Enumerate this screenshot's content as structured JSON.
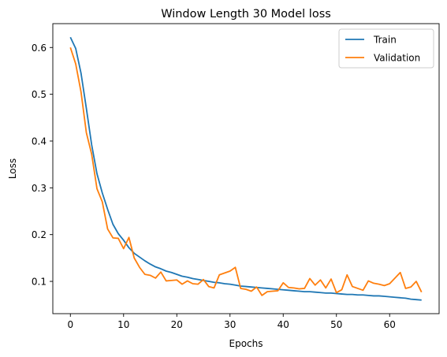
{
  "chart_data": {
    "type": "line",
    "title": "Window Length 30 Model loss",
    "xlabel": "Epochs",
    "ylabel": "Loss",
    "xlim": [
      -3.3,
      69.3
    ],
    "ylim": [
      0.031,
      0.651
    ],
    "xticks": [
      0,
      10,
      20,
      30,
      40,
      50,
      60
    ],
    "yticks": [
      0.1,
      0.2,
      0.3,
      0.4,
      0.5,
      0.6
    ],
    "grid": false,
    "legend_position": "top-right",
    "series": [
      {
        "name": "Train",
        "color": "#1f77b4",
        "values": [
          0.622,
          0.598,
          0.545,
          0.47,
          0.392,
          0.33,
          0.289,
          0.254,
          0.222,
          0.202,
          0.188,
          0.172,
          0.16,
          0.152,
          0.144,
          0.137,
          0.131,
          0.127,
          0.122,
          0.119,
          0.115,
          0.111,
          0.109,
          0.106,
          0.104,
          0.102,
          0.1,
          0.098,
          0.097,
          0.095,
          0.094,
          0.092,
          0.09,
          0.089,
          0.088,
          0.087,
          0.086,
          0.085,
          0.084,
          0.083,
          0.082,
          0.081,
          0.08,
          0.079,
          0.078,
          0.078,
          0.077,
          0.076,
          0.075,
          0.075,
          0.074,
          0.073,
          0.072,
          0.072,
          0.071,
          0.071,
          0.07,
          0.069,
          0.069,
          0.068,
          0.067,
          0.066,
          0.065,
          0.064,
          0.062,
          0.061,
          0.06
        ]
      },
      {
        "name": "Validation",
        "color": "#ff7f0e",
        "values": [
          0.6,
          0.565,
          0.505,
          0.418,
          0.372,
          0.298,
          0.27,
          0.212,
          0.193,
          0.192,
          0.17,
          0.194,
          0.15,
          0.13,
          0.115,
          0.113,
          0.107,
          0.12,
          0.101,
          0.102,
          0.103,
          0.094,
          0.101,
          0.095,
          0.094,
          0.104,
          0.089,
          0.086,
          0.114,
          0.118,
          0.122,
          0.13,
          0.085,
          0.083,
          0.079,
          0.088,
          0.07,
          0.078,
          0.079,
          0.08,
          0.097,
          0.087,
          0.086,
          0.084,
          0.085,
          0.106,
          0.092,
          0.103,
          0.086,
          0.105,
          0.076,
          0.082,
          0.114,
          0.089,
          0.085,
          0.081,
          0.101,
          0.096,
          0.094,
          0.091,
          0.095,
          0.107,
          0.119,
          0.085,
          0.088,
          0.1,
          0.077
        ]
      }
    ]
  }
}
